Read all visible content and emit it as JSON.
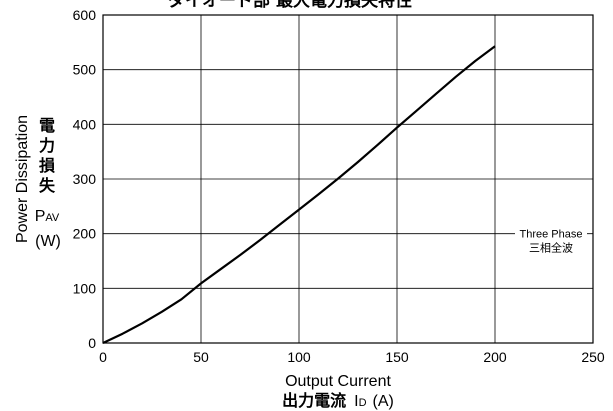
{
  "chart_data": {
    "type": "line",
    "title": "ダイオード部 最大電力損失特性",
    "xlabel": "Output Current",
    "xlabel_jp": "出力電流",
    "xlabel_symbol": "I",
    "xlabel_subscript": "D",
    "xlabel_unit": "(A)",
    "ylabel": "Power Dissipation",
    "ylabel_jp": [
      "電",
      "力",
      "損",
      "失"
    ],
    "ylabel_symbol": "P",
    "ylabel_subscript": "AV",
    "ylabel_unit": "(W)",
    "xlim": [
      0,
      250
    ],
    "ylim": [
      0,
      600
    ],
    "x_ticks": [
      "0",
      "50",
      "100",
      "150",
      "200",
      "250"
    ],
    "y_ticks": [
      "0",
      "100",
      "200",
      "300",
      "400",
      "500",
      "600"
    ],
    "grid": true,
    "series": [
      {
        "name": "Three Phase",
        "name_jp": "三相全波",
        "x": [
          0,
          10,
          20,
          30,
          40,
          50,
          60,
          70,
          80,
          90,
          100,
          110,
          120,
          130,
          140,
          150,
          160,
          170,
          180,
          190,
          200
        ],
        "y": [
          0,
          17,
          36,
          57,
          80,
          109,
          135,
          161,
          188,
          216,
          244,
          272,
          301,
          331,
          362,
          394,
          425,
          456,
          487,
          516,
          543
        ]
      }
    ],
    "annotation_text": "Three Phase",
    "annotation_text_jp": "三相全波",
    "annotation_x": 250,
    "annotation_y": 200
  }
}
